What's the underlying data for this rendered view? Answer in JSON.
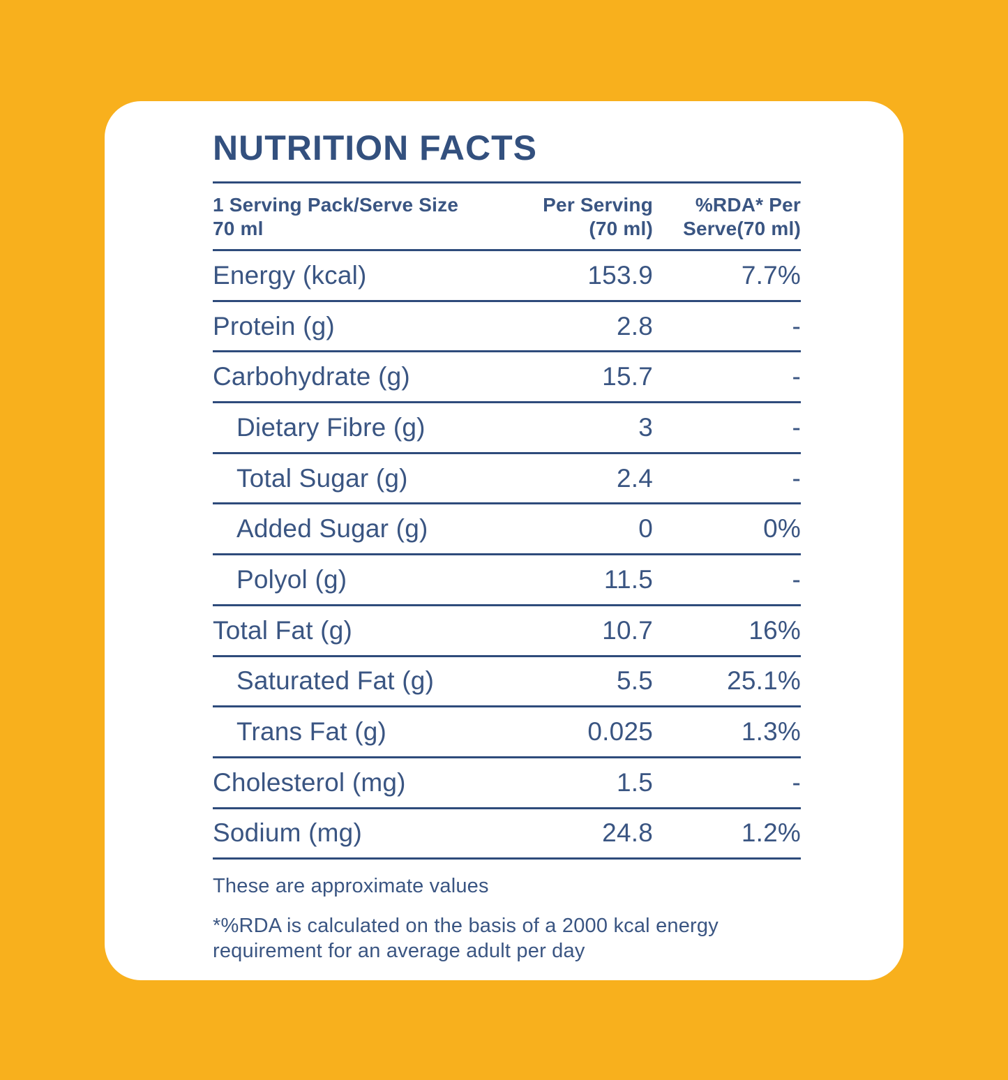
{
  "colors": {
    "background": "#F8B01D",
    "card": "#FFFFFF",
    "text": "#3A5582",
    "title_text": "#33507E",
    "rule": "#2E4B7B"
  },
  "title": "NUTRITION FACTS",
  "table": {
    "header": {
      "serving_info": "1 Serving Pack/Serve Size\n70 ml",
      "per_serving": "Per Serving\n(70 ml)",
      "rda": "%RDA* Per\nServe(70 ml)"
    },
    "rows": [
      {
        "label": "Energy (kcal)",
        "per_serving": "153.9",
        "rda_per_serve": "7.7%",
        "indent": false
      },
      {
        "label": "Protein (g)",
        "per_serving": "2.8",
        "rda_per_serve": "-",
        "indent": false
      },
      {
        "label": "Carbohydrate (g)",
        "per_serving": "15.7",
        "rda_per_serve": "-",
        "indent": false
      },
      {
        "label": "Dietary Fibre (g)",
        "per_serving": "3",
        "rda_per_serve": "-",
        "indent": true
      },
      {
        "label": "Total Sugar (g)",
        "per_serving": "2.4",
        "rda_per_serve": "-",
        "indent": true
      },
      {
        "label": "Added Sugar (g)",
        "per_serving": "0",
        "rda_per_serve": "0%",
        "indent": true
      },
      {
        "label": "Polyol (g)",
        "per_serving": "11.5",
        "rda_per_serve": "-",
        "indent": true
      },
      {
        "label": "Total Fat (g)",
        "per_serving": "10.7",
        "rda_per_serve": "16%",
        "indent": false
      },
      {
        "label": "Saturated Fat (g)",
        "per_serving": "5.5",
        "rda_per_serve": "25.1%",
        "indent": true
      },
      {
        "label": "Trans Fat (g)",
        "per_serving": "0.025",
        "rda_per_serve": "1.3%",
        "indent": true
      },
      {
        "label": "Cholesterol (mg)",
        "per_serving": "1.5",
        "rda_per_serve": "-",
        "indent": false
      },
      {
        "label": "Sodium (mg)",
        "per_serving": "24.8",
        "rda_per_serve": "1.2%",
        "indent": false
      }
    ]
  },
  "footnotes": {
    "approx": "These are approximate values",
    "rda": "*%RDA is calculated on the basis of a 2000 kcal energy requirement for an average adult per day"
  }
}
